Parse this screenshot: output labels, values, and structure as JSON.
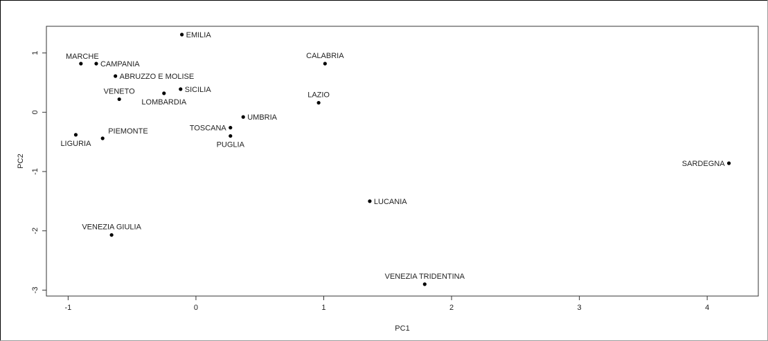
{
  "chart_data": {
    "type": "scatter",
    "title": "",
    "xlabel": "PC1",
    "ylabel": "PC2",
    "xlim": [
      -1.17,
      4.4
    ],
    "ylim": [
      -3.1,
      1.45
    ],
    "xticks": [
      -1,
      0,
      1,
      2,
      3,
      4
    ],
    "yticks": [
      -3,
      -2,
      -1,
      0,
      1
    ],
    "xtick_labels": [
      "-1",
      "0",
      "1",
      "2",
      "3",
      "4"
    ],
    "ytick_labels": [
      "-3",
      "-2",
      "-1",
      "0",
      "1"
    ],
    "grid": false,
    "points": [
      {
        "label": "EMILIA",
        "x": -0.11,
        "y": 1.31,
        "anchor": "right"
      },
      {
        "label": "MARCHE",
        "x": -0.9,
        "y": 0.82,
        "anchor": "above-left"
      },
      {
        "label": "CAMPANIA",
        "x": -0.78,
        "y": 0.82,
        "anchor": "right"
      },
      {
        "label": "CALABRIA",
        "x": 1.01,
        "y": 0.82,
        "anchor": "above"
      },
      {
        "label": "ABRUZZO E MOLISE",
        "x": -0.63,
        "y": 0.61,
        "anchor": "right"
      },
      {
        "label": "VENETO",
        "x": -0.6,
        "y": 0.22,
        "anchor": "above"
      },
      {
        "label": "LOMBARDIA",
        "x": -0.25,
        "y": 0.32,
        "anchor": "below"
      },
      {
        "label": "SICILIA",
        "x": -0.12,
        "y": 0.39,
        "anchor": "right"
      },
      {
        "label": "LAZIO",
        "x": 0.96,
        "y": 0.16,
        "anchor": "above"
      },
      {
        "label": "UMBRIA",
        "x": 0.37,
        "y": -0.08,
        "anchor": "right"
      },
      {
        "label": "TOSCANA",
        "x": 0.27,
        "y": -0.26,
        "anchor": "left"
      },
      {
        "label": "PUGLIA",
        "x": 0.27,
        "y": -0.4,
        "anchor": "below"
      },
      {
        "label": "PIEMONTE",
        "x": -0.73,
        "y": -0.44,
        "anchor": "above-right"
      },
      {
        "label": "LIGURIA",
        "x": -0.94,
        "y": -0.38,
        "anchor": "below"
      },
      {
        "label": "SARDEGNA",
        "x": 4.17,
        "y": -0.86,
        "anchor": "left"
      },
      {
        "label": "LUCANIA",
        "x": 1.36,
        "y": -1.5,
        "anchor": "right"
      },
      {
        "label": "VENEZIA GIULIA",
        "x": -0.66,
        "y": -2.07,
        "anchor": "above"
      },
      {
        "label": "VENEZIA TRIDENTINA",
        "x": 1.79,
        "y": -2.9,
        "anchor": "above"
      }
    ]
  }
}
